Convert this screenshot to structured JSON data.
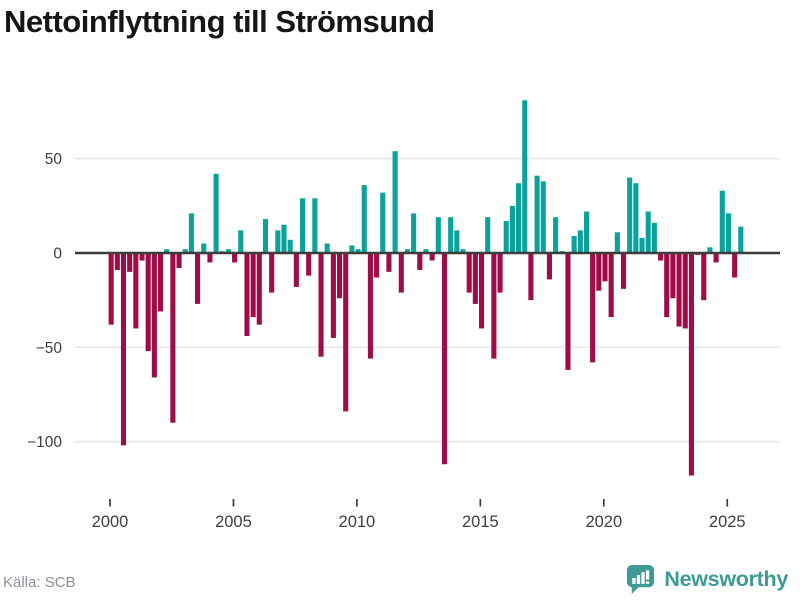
{
  "title": "Nettoinflyttning till Strömsund",
  "source_label": "Källa: SCB",
  "branding": {
    "logo_text": "Newsworthy"
  },
  "colors": {
    "positive": "#0aa29a",
    "negative": "#9e0d47",
    "axis": "#3d3d3d",
    "grid": "#e8e8e8",
    "label": "#3f3f3f",
    "title": "#161616",
    "source_text": "#8f8f97",
    "brand": "#3e9a97",
    "background": "#ffffff"
  },
  "chart_data": {
    "type": "bar",
    "title": "Nettoinflyttning till Strömsund",
    "frequency": "quarterly",
    "x_start": "2000 Q1",
    "x_end": "2025 Q3",
    "xlabel": "",
    "ylabel": "",
    "ylim": [
      -125,
      95
    ],
    "grid": true,
    "positive_color": "#0aa29a",
    "negative_color": "#9e0d47",
    "x_tick_labels": [
      "2000",
      "2005",
      "2010",
      "2015",
      "2020",
      "2025"
    ],
    "y_ticks": [
      {
        "value": 50,
        "label": "50"
      },
      {
        "value": 0,
        "label": "0"
      },
      {
        "value": -50,
        "label": "−50"
      },
      {
        "value": -100,
        "label": "−100"
      }
    ],
    "values": [
      -38,
      -9,
      -102,
      -10,
      -40,
      -4,
      -52,
      -66,
      -31,
      2,
      -90,
      -8,
      2,
      21,
      -27,
      5,
      -5,
      42,
      1,
      2,
      -5,
      12,
      -44,
      -34,
      -38,
      18,
      -21,
      12,
      15,
      7,
      -18,
      29,
      -12,
      29,
      -55,
      5,
      -45,
      -24,
      -84,
      4,
      2,
      36,
      -56,
      -13,
      32,
      -10,
      54,
      -21,
      2,
      21,
      -9,
      2,
      -4,
      19,
      -112,
      19,
      12,
      2,
      -21,
      -27,
      -40,
      19,
      -56,
      -21,
      17,
      25,
      37,
      81,
      -25,
      41,
      38,
      -14,
      19,
      1,
      -62,
      9,
      12,
      22,
      -58,
      -20,
      -15,
      -34,
      11,
      -19,
      40,
      37,
      8,
      22,
      16,
      -4,
      -34,
      -24,
      -39,
      -40,
      -118,
      -1,
      -25,
      3,
      -5,
      33,
      21,
      -13,
      14
    ]
  }
}
